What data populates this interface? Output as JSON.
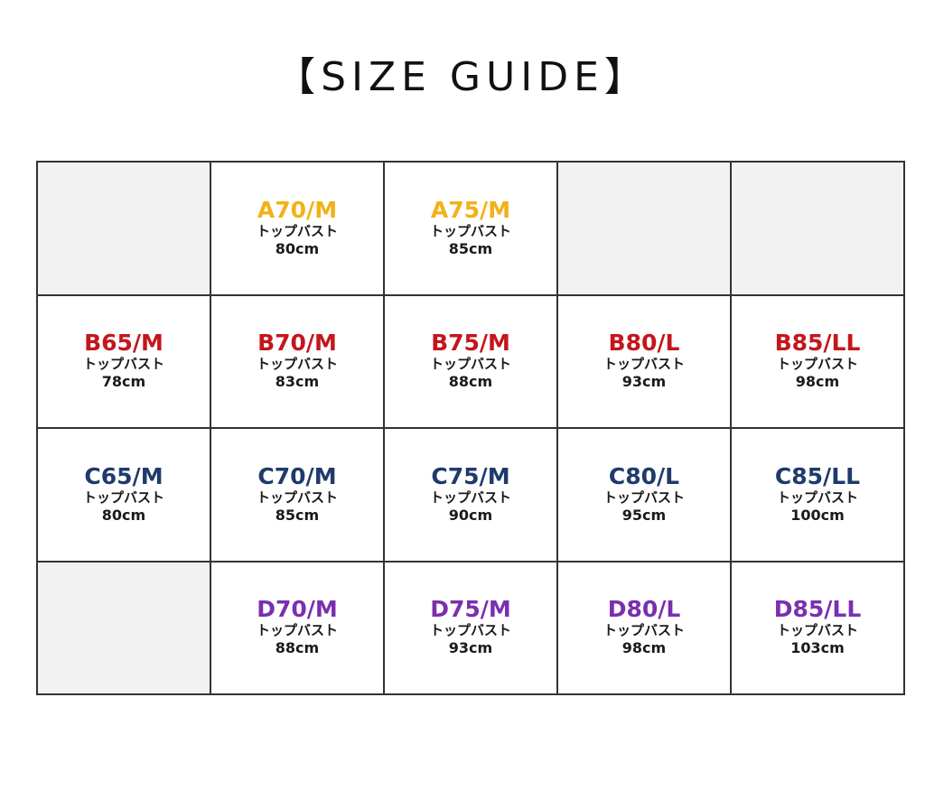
{
  "title": "【SIZE GUIDE】",
  "colors": {
    "A": "#f2b118",
    "B": "#c4161c",
    "C": "#1f3a6b",
    "D": "#7a2fb0",
    "empty": "#f2f2f2",
    "grid_line": "#333333"
  },
  "rows": [
    {
      "cup": "A",
      "cells": [
        null,
        {
          "size": "A70/M",
          "label": "トップバスト",
          "value": "80cm"
        },
        {
          "size": "A75/M",
          "label": "トップバスト",
          "value": "85cm"
        },
        null,
        null
      ]
    },
    {
      "cup": "B",
      "cells": [
        {
          "size": "B65/M",
          "label": "トップバスト",
          "value": "78cm"
        },
        {
          "size": "B70/M",
          "label": "トップバスト",
          "value": "83cm"
        },
        {
          "size": "B75/M",
          "label": "トップバスト",
          "value": "88cm"
        },
        {
          "size": "B80/L",
          "label": "トップバスト",
          "value": "93cm"
        },
        {
          "size": "B85/LL",
          "label": "トップバスト",
          "value": "98cm"
        }
      ]
    },
    {
      "cup": "C",
      "cells": [
        {
          "size": "C65/M",
          "label": "トップバスト",
          "value": "80cm"
        },
        {
          "size": "C70/M",
          "label": "トップバスト",
          "value": "85cm"
        },
        {
          "size": "C75/M",
          "label": "トップバスト",
          "value": "90cm"
        },
        {
          "size": "C80/L",
          "label": "トップバスト",
          "value": "95cm"
        },
        {
          "size": "C85/LL",
          "label": "トップバスト",
          "value": "100cm"
        }
      ]
    },
    {
      "cup": "D",
      "cells": [
        null,
        {
          "size": "D70/M",
          "label": "トップバスト",
          "value": "88cm"
        },
        {
          "size": "D75/M",
          "label": "トップバスト",
          "value": "93cm"
        },
        {
          "size": "D80/L",
          "label": "トップバスト",
          "value": "98cm"
        },
        {
          "size": "D85/LL",
          "label": "トップバスト",
          "value": "103cm"
        }
      ]
    }
  ]
}
